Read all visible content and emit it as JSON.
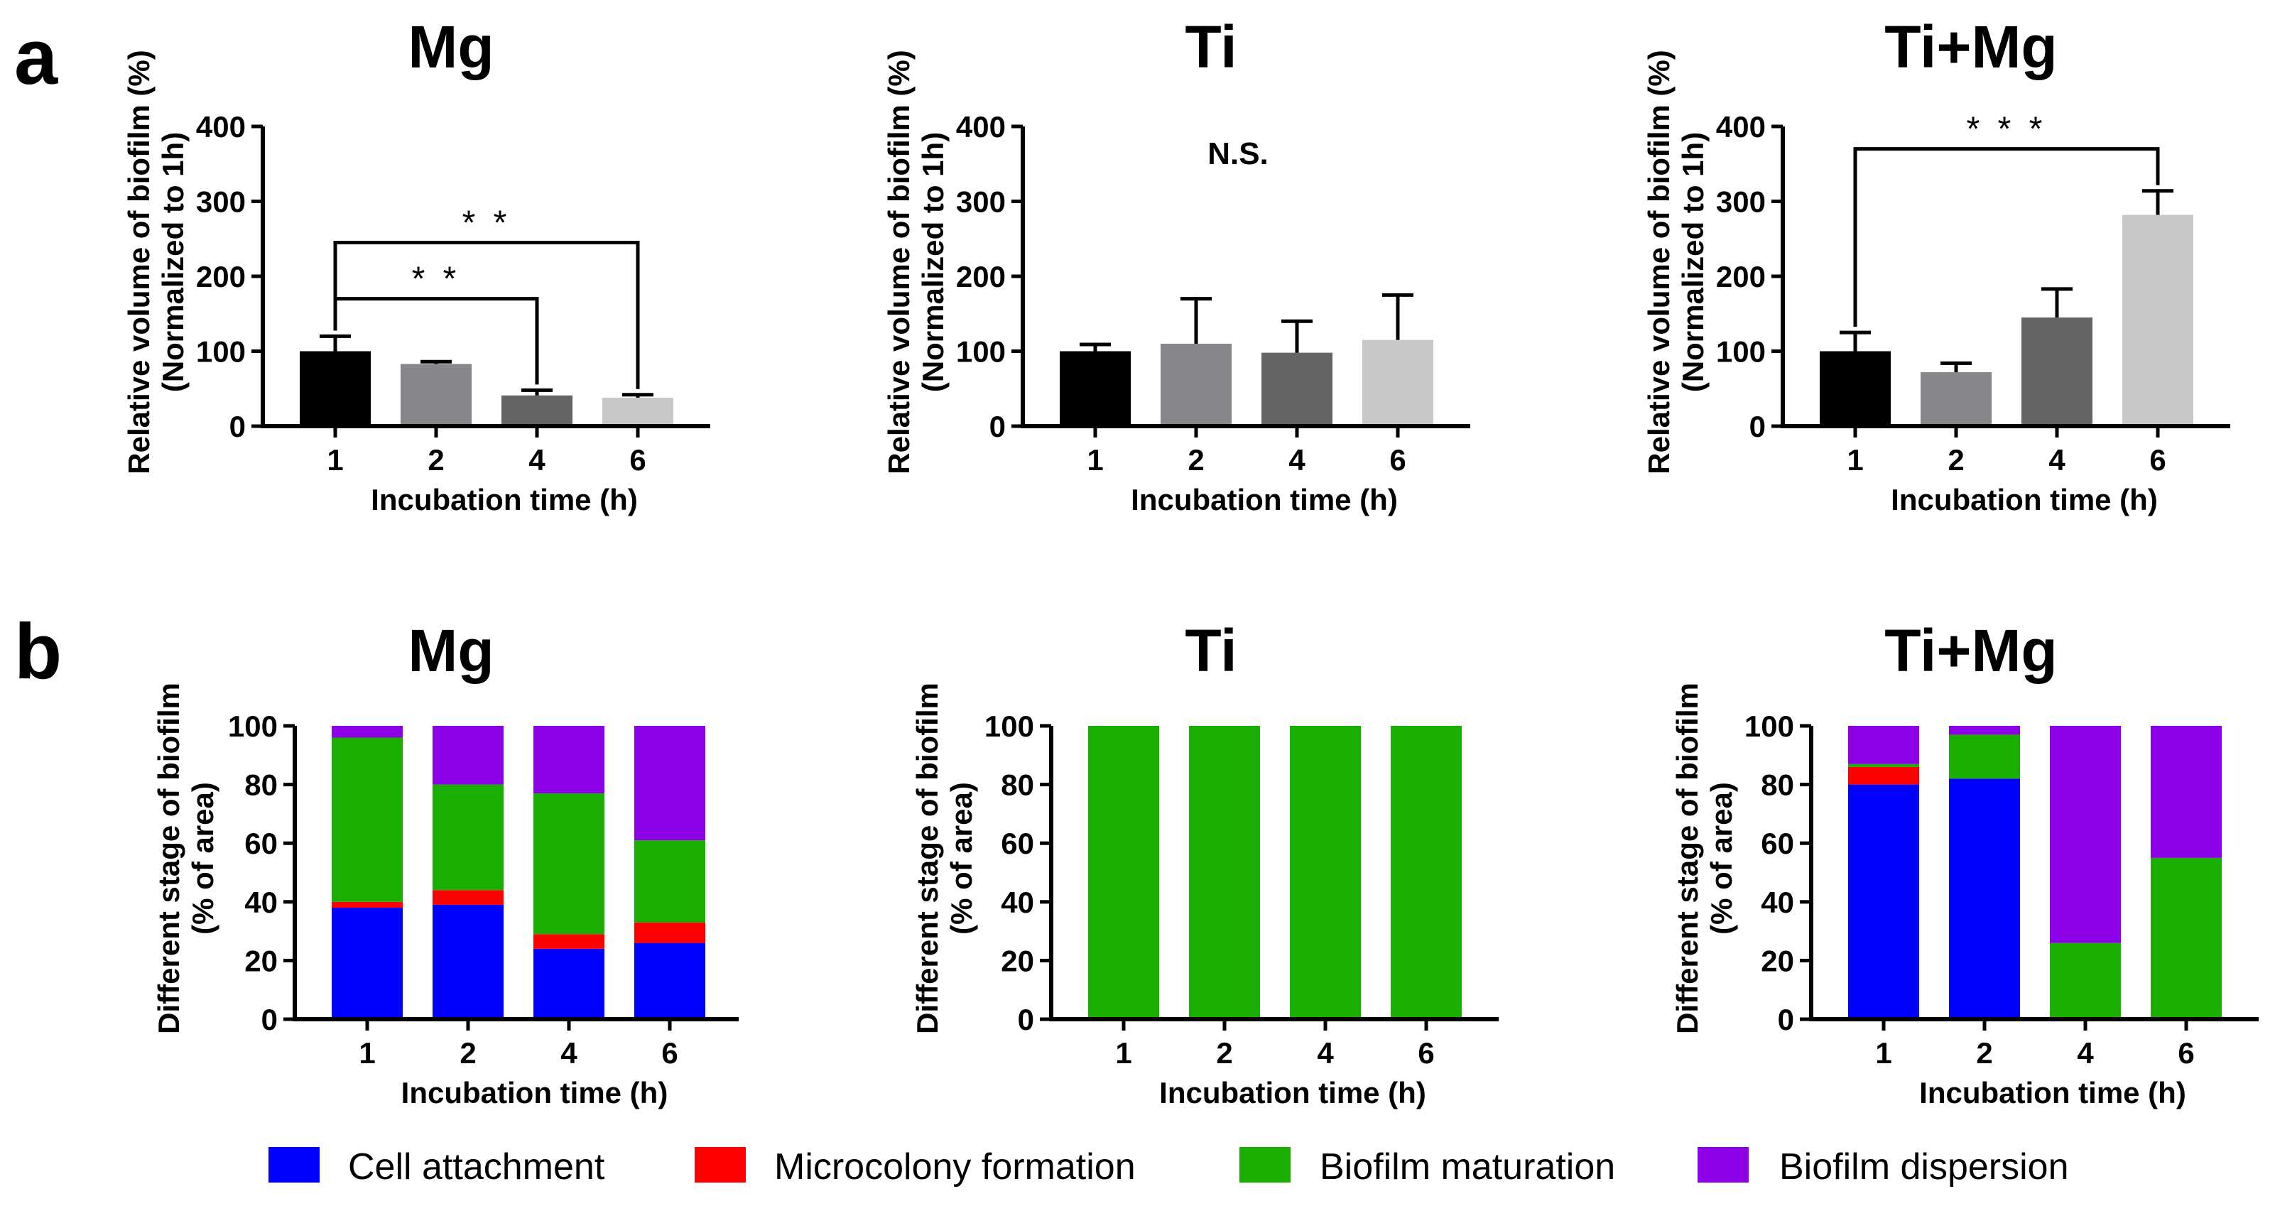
{
  "panel_labels": [
    "a",
    "b"
  ],
  "legend": [
    {
      "label": "Cell attachment",
      "color": "#0000FF"
    },
    {
      "label": "Microcolony formation",
      "color": "#FF0000"
    },
    {
      "label": "Biofilm maturation",
      "color": "#1AAE00"
    },
    {
      "label": "Biofilm dispersion",
      "color": "#8B00E6"
    }
  ],
  "bar_colors": [
    "#000000",
    "#87878B",
    "#646464",
    "#C8C8C8"
  ],
  "chart_data": [
    {
      "type": "bar",
      "panel": "a",
      "title": "Mg",
      "xlabel": "Incubation time (h)",
      "ylabel_line1": "Relative volume of biofilm (%)",
      "ylabel_line2": "(Normalized to 1h)",
      "categories": [
        "1",
        "2",
        "4",
        "6"
      ],
      "values": [
        100,
        83,
        41,
        38
      ],
      "errors": [
        20,
        3,
        7,
        4
      ],
      "ylim": [
        0,
        400
      ],
      "yticks": [
        "0",
        "100",
        "200",
        "300",
        "400"
      ],
      "annotations": [
        {
          "label": "* *",
          "from": "1",
          "to": "4",
          "level": 170
        },
        {
          "label": "* *",
          "from": "1",
          "to": "6",
          "level": 245
        }
      ],
      "note": ""
    },
    {
      "type": "bar",
      "panel": "a",
      "title": "Ti",
      "xlabel": "Incubation time (h)",
      "ylabel_line1": "Relative volume of biofilm (%)",
      "ylabel_line2": "(Normalized to 1h)",
      "categories": [
        "1",
        "2",
        "4",
        "6"
      ],
      "values": [
        100,
        110,
        98,
        115
      ],
      "errors": [
        9,
        60,
        42,
        60
      ],
      "ylim": [
        0,
        400
      ],
      "yticks": [
        "0",
        "100",
        "200",
        "300",
        "400"
      ],
      "annotations": [],
      "note": "N.S."
    },
    {
      "type": "bar",
      "panel": "a",
      "title": "Ti+Mg",
      "xlabel": "Incubation time (h)",
      "ylabel_line1": "Relative volume of biofilm (%)",
      "ylabel_line2": "(Normalized to 1h)",
      "categories": [
        "1",
        "2",
        "4",
        "6"
      ],
      "values": [
        100,
        72,
        145,
        282
      ],
      "errors": [
        25,
        12,
        38,
        32
      ],
      "ylim": [
        0,
        400
      ],
      "yticks": [
        "0",
        "100",
        "200",
        "300",
        "400"
      ],
      "annotations": [
        {
          "label": "* * *",
          "from": "1",
          "to": "6",
          "level": 370
        }
      ],
      "note": ""
    },
    {
      "type": "stacked_bar",
      "panel": "b",
      "title": "Mg",
      "xlabel": "Incubation time (h)",
      "ylabel_line1": "Different stage of biofilm",
      "ylabel_line2": "(% of area)",
      "categories": [
        "1",
        "2",
        "4",
        "6"
      ],
      "ylim": [
        0,
        100
      ],
      "yticks": [
        "0",
        "20",
        "40",
        "60",
        "80",
        "100"
      ],
      "series": [
        {
          "name": "Cell attachment",
          "values": [
            38,
            39,
            24,
            26
          ]
        },
        {
          "name": "Microcolony formation",
          "values": [
            2,
            5,
            5,
            7
          ]
        },
        {
          "name": "Biofilm maturation",
          "values": [
            56,
            36,
            48,
            28
          ]
        },
        {
          "name": "Biofilm dispersion",
          "values": [
            4,
            20,
            23,
            39
          ]
        }
      ]
    },
    {
      "type": "stacked_bar",
      "panel": "b",
      "title": "Ti",
      "xlabel": "Incubation time (h)",
      "ylabel_line1": "Different stage of biofilm",
      "ylabel_line2": "(% of area)",
      "categories": [
        "1",
        "2",
        "4",
        "6"
      ],
      "ylim": [
        0,
        100
      ],
      "yticks": [
        "0",
        "20",
        "40",
        "60",
        "80",
        "100"
      ],
      "series": [
        {
          "name": "Cell attachment",
          "values": [
            0,
            0,
            0,
            0
          ]
        },
        {
          "name": "Microcolony formation",
          "values": [
            0,
            0,
            0,
            0
          ]
        },
        {
          "name": "Biofilm maturation",
          "values": [
            100,
            100,
            100,
            100
          ]
        },
        {
          "name": "Biofilm dispersion",
          "values": [
            0,
            0,
            0,
            0
          ]
        }
      ]
    },
    {
      "type": "stacked_bar",
      "panel": "b",
      "title": "Ti+Mg",
      "xlabel": "Incubation time (h)",
      "ylabel_line1": "Different stage of biofilm",
      "ylabel_line2": "(% of area)",
      "categories": [
        "1",
        "2",
        "4",
        "6"
      ],
      "ylim": [
        0,
        100
      ],
      "yticks": [
        "0",
        "20",
        "40",
        "60",
        "80",
        "100"
      ],
      "series": [
        {
          "name": "Cell attachment",
          "values": [
            80,
            82,
            0,
            0
          ]
        },
        {
          "name": "Microcolony formation",
          "values": [
            6,
            0,
            0,
            0
          ]
        },
        {
          "name": "Biofilm maturation",
          "values": [
            1,
            15,
            26,
            55
          ]
        },
        {
          "name": "Biofilm dispersion",
          "values": [
            13,
            3,
            74,
            45
          ]
        }
      ]
    }
  ]
}
